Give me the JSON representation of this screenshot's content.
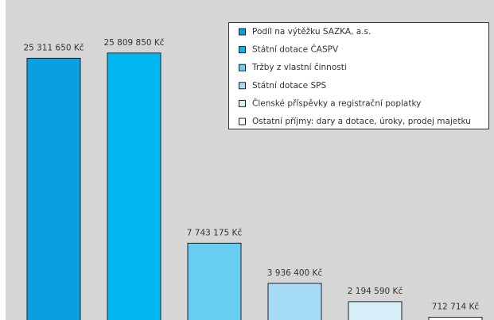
{
  "chart_data": {
    "type": "bar",
    "series": [
      {
        "name": "Podíl na výtěžku SAZKA, a.s.",
        "color": "#0a9fe1",
        "values": [
          25311650
        ],
        "value_labels": [
          "25 311 650 Kč"
        ]
      },
      {
        "name": "Státní dotace ČASPV",
        "color": "#00b6ef",
        "values": [
          25809850
        ],
        "value_labels": [
          "25 809 850 Kč"
        ]
      },
      {
        "name": "Tržby z vlastní činnosti",
        "color": "#67cdf3",
        "values": [
          7743175
        ],
        "value_labels": [
          "7 743 175 Kč"
        ]
      },
      {
        "name": "Státní dotace SPS",
        "color": "#a7dcf6",
        "values": [
          3936400
        ],
        "value_labels": [
          "3 936 400 Kč"
        ]
      },
      {
        "name": "Členské příspěvky a registrační poplatky",
        "color": "#d8eff9",
        "values": [
          2194590
        ],
        "value_labels": [
          "2 194 590 Kč"
        ]
      },
      {
        "name": "Ostatní příjmy: dary a dotace, úroky, prodej majetku",
        "color": "#ffffff",
        "values": [
          712714
        ],
        "value_labels": [
          "712 714 Kč"
        ]
      }
    ],
    "ylim": [
      0,
      27000000
    ]
  }
}
